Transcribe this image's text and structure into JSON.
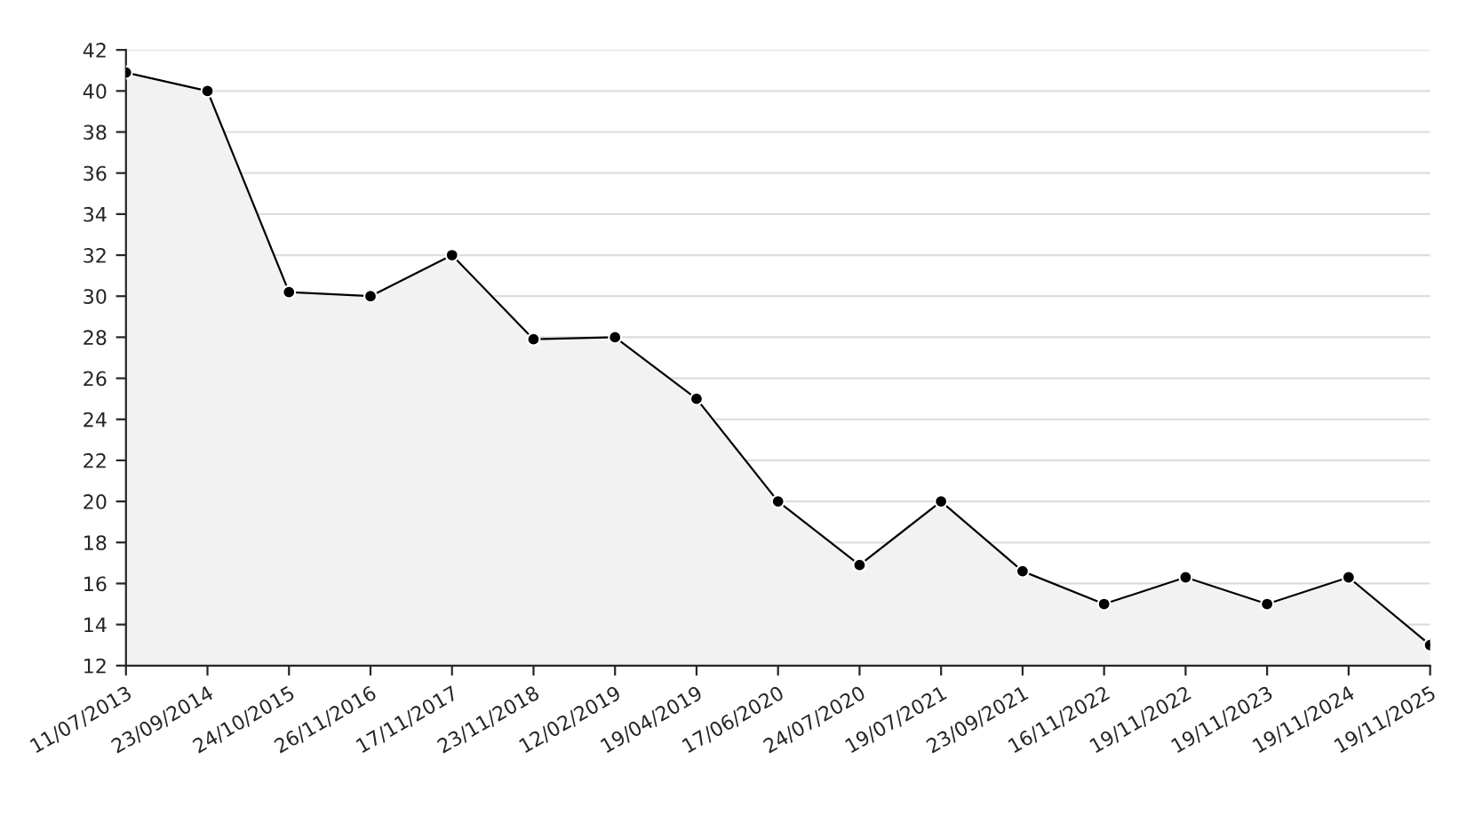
{
  "chart_data": {
    "type": "area",
    "categories": [
      "11/07/2013",
      "23/09/2014",
      "24/10/2015",
      "26/11/2016",
      "17/11/2017",
      "23/11/2018",
      "12/02/2019",
      "19/04/2019",
      "17/06/2020",
      "24/07/2020",
      "19/07/2021",
      "23/09/2021",
      "16/11/2022",
      "19/11/2022",
      "19/11/2023",
      "19/11/2024",
      "19/11/2025"
    ],
    "series": [
      {
        "color": "#000000",
        "values": [
          40.9,
          40.0,
          30.2,
          30.0,
          32.0,
          27.9,
          28.0,
          25.0,
          20.0,
          16.9,
          20.0,
          16.6,
          15.0,
          16.3,
          15.0,
          16.3,
          13.0
        ]
      }
    ],
    "ylim": [
      12,
      42
    ],
    "yticks": [
      12,
      14,
      16,
      18,
      20,
      22,
      24,
      26,
      28,
      30,
      32,
      34,
      36,
      38,
      40,
      42
    ],
    "grid": "y",
    "marker": "circle",
    "line_style": "solid"
  }
}
